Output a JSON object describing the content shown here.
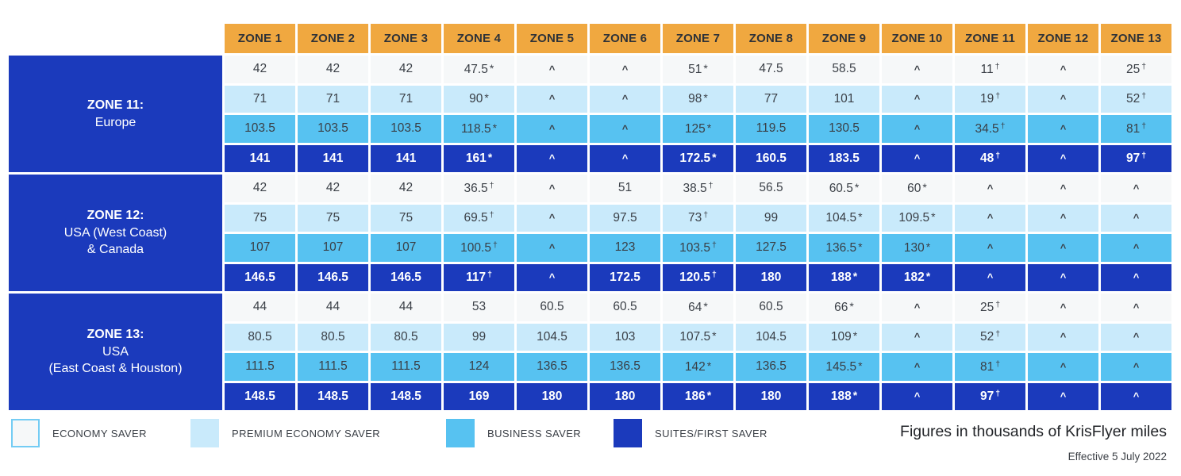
{
  "chart_data": {
    "type": "table",
    "units_note": "Figures in thousands of KrisFlyer miles",
    "effective_note": "Effective 5 July 2022",
    "columns": [
      "ZONE 1",
      "ZONE 2",
      "ZONE 3",
      "ZONE 4",
      "ZONE 5",
      "ZONE 6",
      "ZONE 7",
      "ZONE 8",
      "ZONE 9",
      "ZONE 10",
      "ZONE 11",
      "ZONE 12",
      "ZONE 13"
    ],
    "row_groups": [
      {
        "zone": "ZONE 11:",
        "region": [
          "Europe"
        ],
        "rows": [
          {
            "cabin": "ECONOMY SAVER",
            "values": [
              "42",
              "42",
              "42",
              "47.5 *",
              "^",
              "^",
              "51 *",
              "47.5",
              "58.5",
              "^",
              "11 †",
              "^",
              "25 †"
            ]
          },
          {
            "cabin": "PREMIUM ECONOMY SAVER",
            "values": [
              "71",
              "71",
              "71",
              "90 *",
              "^",
              "^",
              "98 *",
              "77",
              "101",
              "^",
              "19 †",
              "^",
              "52 †"
            ]
          },
          {
            "cabin": "BUSINESS SAVER",
            "values": [
              "103.5",
              "103.5",
              "103.5",
              "118.5 *",
              "^",
              "^",
              "125 *",
              "119.5",
              "130.5",
              "^",
              "34.5 †",
              "^",
              "81 †"
            ]
          },
          {
            "cabin": "SUITES/FIRST SAVER",
            "values": [
              "141",
              "141",
              "141",
              "161 *",
              "^",
              "^",
              "172.5 *",
              "160.5",
              "183.5",
              "^",
              "48 †",
              "^",
              "97 †"
            ]
          }
        ]
      },
      {
        "zone": "ZONE 12:",
        "region": [
          "USA (West Coast)",
          "& Canada"
        ],
        "rows": [
          {
            "cabin": "ECONOMY SAVER",
            "values": [
              "42",
              "42",
              "42",
              "36.5 †",
              "^",
              "51",
              "38.5 †",
              "56.5",
              "60.5 *",
              "60 *",
              "^",
              "^",
              "^"
            ]
          },
          {
            "cabin": "PREMIUM ECONOMY SAVER",
            "values": [
              "75",
              "75",
              "75",
              "69.5 †",
              "^",
              "97.5",
              "73 †",
              "99",
              "104.5 *",
              "109.5 *",
              "^",
              "^",
              "^"
            ]
          },
          {
            "cabin": "BUSINESS SAVER",
            "values": [
              "107",
              "107",
              "107",
              "100.5 †",
              "^",
              "123",
              "103.5 †",
              "127.5",
              "136.5 *",
              "130 *",
              "^",
              "^",
              "^"
            ]
          },
          {
            "cabin": "SUITES/FIRST SAVER",
            "values": [
              "146.5",
              "146.5",
              "146.5",
              "117 †",
              "^",
              "172.5",
              "120.5 †",
              "180",
              "188 *",
              "182 *",
              "^",
              "^",
              "^"
            ]
          }
        ]
      },
      {
        "zone": "ZONE 13:",
        "region": [
          "USA",
          "(East Coast & Houston)"
        ],
        "rows": [
          {
            "cabin": "ECONOMY SAVER",
            "values": [
              "44",
              "44",
              "44",
              "53",
              "60.5",
              "60.5",
              "64 *",
              "60.5",
              "66 *",
              "^",
              "25 †",
              "^",
              "^"
            ]
          },
          {
            "cabin": "PREMIUM ECONOMY SAVER",
            "values": [
              "80.5",
              "80.5",
              "80.5",
              "99",
              "104.5",
              "103",
              "107.5 *",
              "104.5",
              "109 *",
              "^",
              "52 †",
              "^",
              "^"
            ]
          },
          {
            "cabin": "BUSINESS SAVER",
            "values": [
              "111.5",
              "111.5",
              "111.5",
              "124",
              "136.5",
              "136.5",
              "142 *",
              "136.5",
              "145.5 *",
              "^",
              "81 †",
              "^",
              "^"
            ]
          },
          {
            "cabin": "SUITES/FIRST SAVER",
            "values": [
              "148.5",
              "148.5",
              "148.5",
              "169",
              "180",
              "180",
              "186 *",
              "180",
              "188 *",
              "^",
              "97 †",
              "^",
              "^"
            ]
          }
        ]
      }
    ],
    "legend": [
      {
        "label": "ECONOMY SAVER",
        "swatch_color": "#F6F8F9",
        "swatch_border": "#74CCF4"
      },
      {
        "label": "PREMIUM ECONOMY SAVER",
        "swatch_color": "#C9EAFB"
      },
      {
        "label": "BUSINESS SAVER",
        "swatch_color": "#57C2F1"
      },
      {
        "label": "SUITES/FIRST SAVER",
        "swatch_color": "#1B3ABC"
      }
    ],
    "colors": {
      "header_bg": "#F0A840",
      "header_text": "#2E3238",
      "economy_bg": "#F6F8F9",
      "premium_bg": "#C9EAFB",
      "business_bg": "#57C2F1",
      "suites_bg": "#1B3ABC",
      "row_label_bg": "#1B3ABC",
      "cell_text": "#3A3F46"
    }
  }
}
